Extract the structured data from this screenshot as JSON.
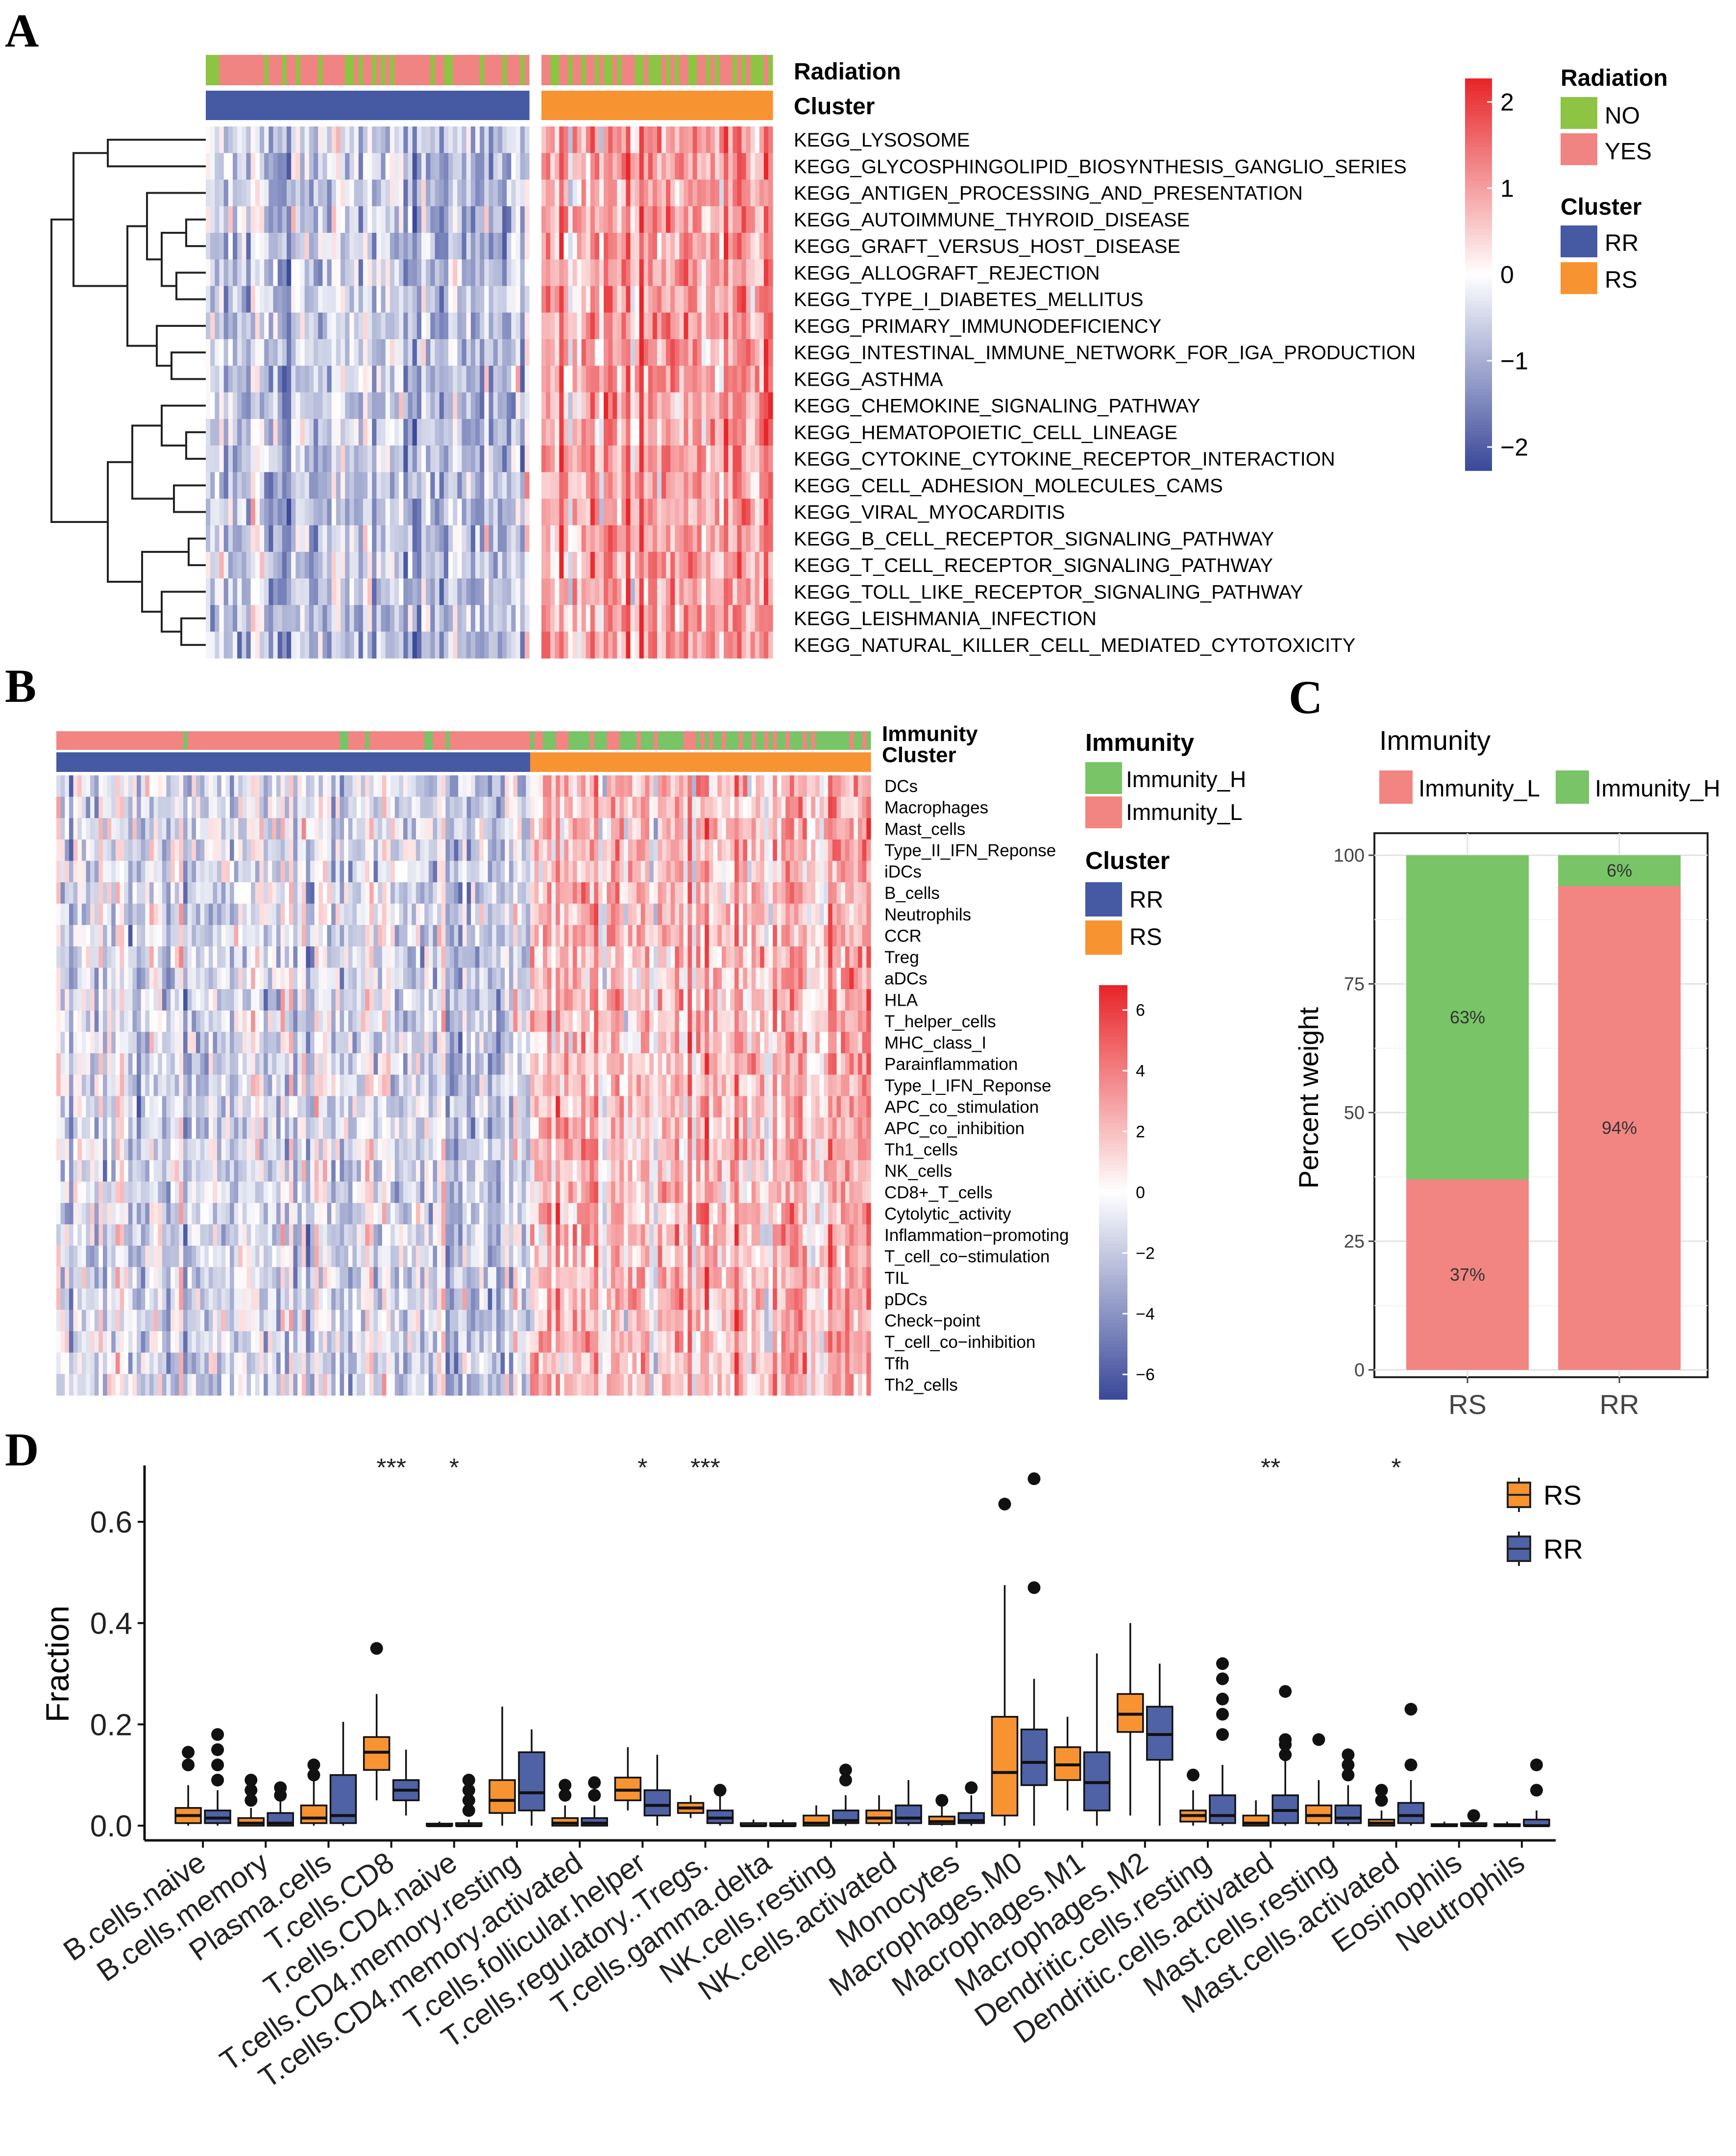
{
  "panel_labels": [
    "A",
    "B",
    "C",
    "D"
  ],
  "palette": {
    "heat_low": "#3B4A9A",
    "heat_mid": "#FFFFFF",
    "heat_high": "#E8262A",
    "radiation_no": "#8DC443",
    "radiation_yes": "#F08482",
    "cluster_rr": "#4659A3",
    "cluster_rs": "#F89332",
    "immunity_h": "#78C466",
    "immunity_l": "#F28581",
    "box_rs": "#F89332",
    "box_rr": "#4F62A6"
  },
  "chart_data": [
    {
      "id": "A",
      "type": "heatmap",
      "annotation_titles": [
        "Radiation",
        "Cluster"
      ],
      "rows": [
        "KEGG_LYSOSOME",
        "KEGG_GLYCOSPHINGOLIPID_BIOSYNTHESIS_GANGLIO_SERIES",
        "KEGG_ANTIGEN_PROCESSING_AND_PRESENTATION",
        "KEGG_AUTOIMMUNE_THYROID_DISEASE",
        "KEGG_GRAFT_VERSUS_HOST_DISEASE",
        "KEGG_ALLOGRAFT_REJECTION",
        "KEGG_TYPE_I_DIABETES_MELLITUS",
        "KEGG_PRIMARY_IMMUNODEFICIENCY",
        "KEGG_INTESTINAL_IMMUNE_NETWORK_FOR_IGA_PRODUCTION",
        "KEGG_ASTHMA",
        "KEGG_CHEMOKINE_SIGNALING_PATHWAY",
        "KEGG_HEMATOPOIETIC_CELL_LINEAGE",
        "KEGG_CYTOKINE_CYTOKINE_RECEPTOR_INTERACTION",
        "KEGG_CELL_ADHESION_MOLECULES_CAMS",
        "KEGG_VIRAL_MYOCARDITIS",
        "KEGG_B_CELL_RECEPTOR_SIGNALING_PATHWAY",
        "KEGG_T_CELL_RECEPTOR_SIGNALING_PATHWAY",
        "KEGG_TOLL_LIKE_RECEPTOR_SIGNALING_PATHWAY",
        "KEGG_LEISHMANIA_INFECTION",
        "KEGG_NATURAL_KILLER_CELL_MEDIATED_CYTOTOXICITY"
      ],
      "groups": [
        {
          "name": "RR",
          "columns": 72,
          "mean": -0.55
        },
        {
          "name": "RS",
          "columns": 52,
          "mean": 0.75
        }
      ],
      "color_range": [
        -2.4,
        2.4
      ],
      "colorbar_ticks": [
        "2",
        "1",
        "0",
        "−1",
        "−2"
      ],
      "legend": {
        "radiation_title": "Radiation",
        "radiation_items": [
          "NO",
          "YES"
        ],
        "cluster_title": "Cluster",
        "cluster_items": [
          "RR",
          "RS"
        ]
      }
    },
    {
      "id": "B",
      "type": "heatmap",
      "annotation_titles": [
        "Immunity",
        "Cluster"
      ],
      "rows": [
        "DCs",
        "Macrophages",
        "Mast_cells",
        "Type_II_IFN_Reponse",
        "iDCs",
        "B_cells",
        "Neutrophils",
        "CCR",
        "Treg",
        "aDCs",
        "HLA",
        "T_helper_cells",
        "MHC_class_I",
        "Parainflammation",
        "Type_I_IFN_Reponse",
        "APC_co_stimulation",
        "APC_co_inhibition",
        "Th1_cells",
        "NK_cells",
        "CD8+_T_cells",
        "Cytolytic_activity",
        "Inflammation−promoting",
        "T_cell_co−stimulation",
        "TIL",
        "pDCs",
        "Check−point",
        "T_cell_co−inhibition",
        "Tfh",
        "Th2_cells"
      ],
      "groups": [
        {
          "name": "RR",
          "columns": 112,
          "mean": -0.35
        },
        {
          "name": "RS",
          "columns": 80,
          "mean": 0.55
        }
      ],
      "color_range": [
        -6,
        6
      ],
      "colorbar_ticks": [
        "6",
        "4",
        "2",
        "0",
        "−2",
        "−4",
        "−6"
      ],
      "legend": {
        "immunity_title": "Immunity",
        "immunity_items": [
          "Immunity_H",
          "Immunity_L"
        ],
        "cluster_title": "Cluster",
        "cluster_items": [
          "RR",
          "RS"
        ]
      }
    },
    {
      "id": "C",
      "type": "bar",
      "stacked": true,
      "legend_title": "Immunity",
      "categories": [
        "RS",
        "RR"
      ],
      "series": [
        {
          "name": "Immunity_L",
          "values": [
            37,
            94
          ],
          "labels": [
            "37%",
            "94%"
          ]
        },
        {
          "name": "Immunity_H",
          "values": [
            63,
            6
          ],
          "labels": [
            "63%",
            "6%"
          ]
        }
      ],
      "ylabel": "Percent weight",
      "xlabel": "",
      "ylim": [
        0,
        100
      ],
      "yticks": [
        0,
        25,
        50,
        75,
        100
      ]
    },
    {
      "id": "D",
      "type": "box",
      "ylabel": "Fraction",
      "ylim": [
        -0.02,
        0.72
      ],
      "yticks": [
        "0.0",
        "0.2",
        "0.4",
        "0.6"
      ],
      "legend": [
        "RS",
        "RR"
      ],
      "categories": [
        "B.cells.naive",
        "B.cells.memory",
        "Plasma.cells",
        "T.cells.CD8",
        "T.cells.CD4.naive",
        "T.cells.CD4.memory.resting",
        "T.cells.CD4.memory.activated",
        "T.cells.follicular.helper",
        "T.cells.regulatory..Tregs.",
        "T.cells.gamma.delta",
        "NK.cells.resting",
        "NK.cells.activated",
        "Monocytes",
        "Macrophages.M0",
        "Macrophages.M1",
        "Macrophages.M2",
        "Dendritic.cells.resting",
        "Dendritic.cells.activated",
        "Mast.cells.resting",
        "Mast.cells.activated",
        "Eosinophils",
        "Neutrophils"
      ],
      "significance": [
        "",
        "",
        "",
        "***",
        "*",
        "",
        "",
        "*",
        "***",
        "",
        "",
        "",
        "",
        "",
        "",
        "",
        "",
        "**",
        "",
        "*",
        "",
        ""
      ],
      "RS": [
        {
          "min": 0.0,
          "q1": 0.005,
          "med": 0.02,
          "q3": 0.035,
          "max": 0.08,
          "out": [
            0.12,
            0.145
          ]
        },
        {
          "min": 0.0,
          "q1": 0.0,
          "med": 0.005,
          "q3": 0.015,
          "max": 0.035,
          "out": [
            0.05,
            0.07,
            0.09
          ]
        },
        {
          "min": 0.0,
          "q1": 0.005,
          "med": 0.015,
          "q3": 0.04,
          "max": 0.09,
          "out": [
            0.1,
            0.12
          ]
        },
        {
          "min": 0.05,
          "q1": 0.11,
          "med": 0.145,
          "q3": 0.175,
          "max": 0.26,
          "out": [
            0.35
          ]
        },
        {
          "min": 0.0,
          "q1": 0.0,
          "med": 0.0,
          "q3": 0.004,
          "max": 0.008,
          "out": []
        },
        {
          "min": 0.0,
          "q1": 0.025,
          "med": 0.05,
          "q3": 0.09,
          "max": 0.235,
          "out": []
        },
        {
          "min": 0.0,
          "q1": 0.0,
          "med": 0.005,
          "q3": 0.015,
          "max": 0.04,
          "out": [
            0.06,
            0.08
          ]
        },
        {
          "min": 0.03,
          "q1": 0.05,
          "med": 0.07,
          "q3": 0.095,
          "max": 0.155,
          "out": []
        },
        {
          "min": 0.015,
          "q1": 0.025,
          "med": 0.035,
          "q3": 0.045,
          "max": 0.06,
          "out": []
        },
        {
          "min": 0.0,
          "q1": 0.0,
          "med": 0.0,
          "q3": 0.005,
          "max": 0.012,
          "out": []
        },
        {
          "min": 0.0,
          "q1": 0.0,
          "med": 0.005,
          "q3": 0.02,
          "max": 0.04,
          "out": []
        },
        {
          "min": 0.0,
          "q1": 0.005,
          "med": 0.015,
          "q3": 0.03,
          "max": 0.06,
          "out": []
        },
        {
          "min": 0.0,
          "q1": 0.003,
          "med": 0.008,
          "q3": 0.018,
          "max": 0.04,
          "out": [
            0.05
          ]
        },
        {
          "min": 0.0,
          "q1": 0.02,
          "med": 0.105,
          "q3": 0.215,
          "max": 0.475,
          "out": [
            0.635
          ]
        },
        {
          "min": 0.03,
          "q1": 0.09,
          "med": 0.12,
          "q3": 0.155,
          "max": 0.215,
          "out": []
        },
        {
          "min": 0.02,
          "q1": 0.185,
          "med": 0.22,
          "q3": 0.26,
          "max": 0.4,
          "out": []
        },
        {
          "min": 0.0,
          "q1": 0.008,
          "med": 0.02,
          "q3": 0.03,
          "max": 0.07,
          "out": [
            0.1
          ]
        },
        {
          "min": 0.0,
          "q1": 0.0,
          "med": 0.005,
          "q3": 0.02,
          "max": 0.05,
          "out": []
        },
        {
          "min": 0.0,
          "q1": 0.005,
          "med": 0.02,
          "q3": 0.04,
          "max": 0.09,
          "out": [
            0.17
          ]
        },
        {
          "min": 0.0,
          "q1": 0.0,
          "med": 0.005,
          "q3": 0.012,
          "max": 0.03,
          "out": [
            0.05,
            0.07
          ]
        },
        {
          "min": 0.0,
          "q1": 0.0,
          "med": 0.0,
          "q3": 0.003,
          "max": 0.008,
          "out": []
        },
        {
          "min": 0.0,
          "q1": 0.0,
          "med": 0.0,
          "q3": 0.003,
          "max": 0.008,
          "out": []
        }
      ],
      "RR": [
        {
          "min": 0.0,
          "q1": 0.005,
          "med": 0.015,
          "q3": 0.03,
          "max": 0.07,
          "out": [
            0.09,
            0.12,
            0.15,
            0.18
          ]
        },
        {
          "min": 0.0,
          "q1": 0.0,
          "med": 0.005,
          "q3": 0.025,
          "max": 0.05,
          "out": [
            0.06,
            0.075
          ]
        },
        {
          "min": 0.0,
          "q1": 0.005,
          "med": 0.02,
          "q3": 0.1,
          "max": 0.205,
          "out": []
        },
        {
          "min": 0.02,
          "q1": 0.05,
          "med": 0.07,
          "q3": 0.09,
          "max": 0.15,
          "out": []
        },
        {
          "min": 0.0,
          "q1": 0.0,
          "med": 0.0,
          "q3": 0.005,
          "max": 0.012,
          "out": [
            0.03,
            0.05,
            0.07,
            0.09
          ]
        },
        {
          "min": 0.0,
          "q1": 0.03,
          "med": 0.065,
          "q3": 0.145,
          "max": 0.19,
          "out": []
        },
        {
          "min": 0.0,
          "q1": 0.0,
          "med": 0.005,
          "q3": 0.015,
          "max": 0.04,
          "out": [
            0.06,
            0.085
          ]
        },
        {
          "min": 0.0,
          "q1": 0.02,
          "med": 0.04,
          "q3": 0.07,
          "max": 0.14,
          "out": []
        },
        {
          "min": 0.0,
          "q1": 0.005,
          "med": 0.015,
          "q3": 0.03,
          "max": 0.06,
          "out": [
            0.07
          ]
        },
        {
          "min": 0.0,
          "q1": 0.0,
          "med": 0.0,
          "q3": 0.005,
          "max": 0.012,
          "out": []
        },
        {
          "min": 0.0,
          "q1": 0.005,
          "med": 0.01,
          "q3": 0.03,
          "max": 0.06,
          "out": [
            0.09,
            0.11
          ]
        },
        {
          "min": 0.0,
          "q1": 0.005,
          "med": 0.015,
          "q3": 0.04,
          "max": 0.09,
          "out": []
        },
        {
          "min": 0.0,
          "q1": 0.005,
          "med": 0.01,
          "q3": 0.025,
          "max": 0.06,
          "out": [
            0.075
          ]
        },
        {
          "min": 0.0,
          "q1": 0.08,
          "med": 0.125,
          "q3": 0.19,
          "max": 0.29,
          "out": [
            0.47,
            0.685
          ]
        },
        {
          "min": 0.0,
          "q1": 0.03,
          "med": 0.085,
          "q3": 0.145,
          "max": 0.34,
          "out": []
        },
        {
          "min": 0.0,
          "q1": 0.13,
          "med": 0.18,
          "q3": 0.235,
          "max": 0.32,
          "out": []
        },
        {
          "min": 0.0,
          "q1": 0.005,
          "med": 0.02,
          "q3": 0.06,
          "max": 0.12,
          "out": [
            0.18,
            0.22,
            0.25,
            0.29,
            0.32
          ]
        },
        {
          "min": 0.0,
          "q1": 0.005,
          "med": 0.03,
          "q3": 0.06,
          "max": 0.13,
          "out": [
            0.14,
            0.16,
            0.17,
            0.265
          ]
        },
        {
          "min": 0.0,
          "q1": 0.005,
          "med": 0.015,
          "q3": 0.04,
          "max": 0.08,
          "out": [
            0.1,
            0.12,
            0.14
          ]
        },
        {
          "min": 0.0,
          "q1": 0.005,
          "med": 0.02,
          "q3": 0.045,
          "max": 0.09,
          "out": [
            0.12,
            0.23
          ]
        },
        {
          "min": 0.0,
          "q1": 0.0,
          "med": 0.0,
          "q3": 0.005,
          "max": 0.01,
          "out": [
            0.02
          ]
        },
        {
          "min": 0.0,
          "q1": 0.0,
          "med": 0.0,
          "q3": 0.012,
          "max": 0.03,
          "out": [
            0.07,
            0.12
          ]
        }
      ]
    }
  ]
}
